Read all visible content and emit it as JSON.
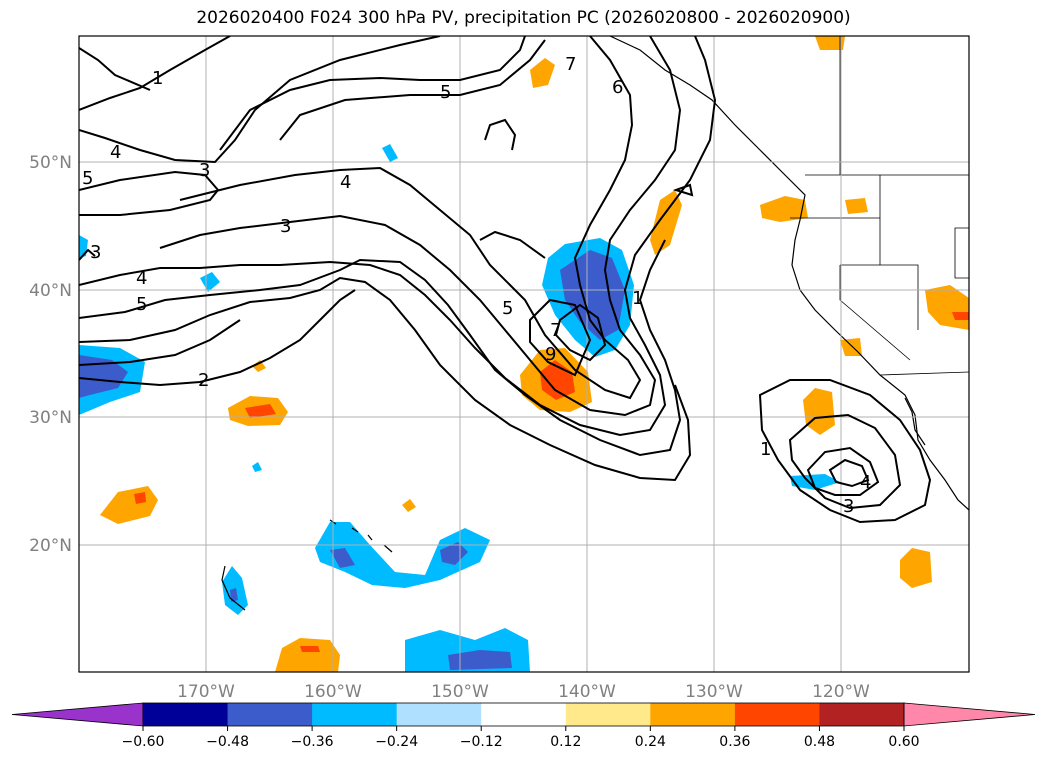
{
  "title": "2026020400 F024 300 hPa PV, precipitation PC (2026020800 - 2026020900)",
  "map": {
    "lat_labels": [
      "50°N",
      "40°N",
      "30°N",
      "20°N"
    ],
    "lon_labels": [
      "170°W",
      "160°W",
      "150°W",
      "140°W",
      "130°W",
      "120°W"
    ],
    "grid": true
  },
  "colorbar": {
    "tick_labels": [
      "−0.60",
      "−0.48",
      "−0.36",
      "−0.24",
      "−0.12",
      "0.12",
      "0.24",
      "0.36",
      "0.48",
      "0.60"
    ],
    "colors": [
      "#9933cc",
      "#000099",
      "#3d5ccc",
      "#00bbff",
      "#b0e0ff",
      "#ffffff",
      "#ffe98a",
      "#ffa500",
      "#ff4500",
      "#b22222",
      "#ff88aa"
    ],
    "extend": "both"
  },
  "pv_contour_labels": [
    {
      "text": "1"
    },
    {
      "text": "4"
    },
    {
      "text": "5"
    },
    {
      "text": "3"
    },
    {
      "text": "4"
    },
    {
      "text": "3"
    },
    {
      "text": "5"
    },
    {
      "text": "3"
    },
    {
      "text": "4"
    },
    {
      "text": "5"
    },
    {
      "text": "2"
    },
    {
      "text": "7"
    },
    {
      "text": "6"
    },
    {
      "text": "5"
    },
    {
      "text": "7"
    },
    {
      "text": "1"
    },
    {
      "text": "9"
    },
    {
      "text": "1"
    },
    {
      "text": "4"
    },
    {
      "text": "3"
    }
  ]
}
